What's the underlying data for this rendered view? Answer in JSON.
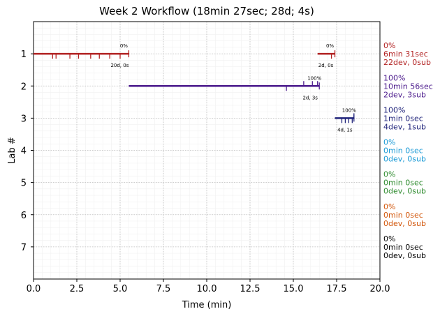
{
  "chart_data": {
    "type": "timeline",
    "title": "Week 2 Workflow (18min 27sec; 28d; 4s)",
    "xlabel": "Time (min)",
    "ylabel": "Lab #",
    "xlim": [
      0,
      20
    ],
    "ylim": [
      0,
      8
    ],
    "x_ticks": [
      "0.0",
      "2.5",
      "5.0",
      "7.5",
      "10.0",
      "12.5",
      "15.0",
      "17.5",
      "20.0"
    ],
    "x_tick_values": [
      0,
      2.5,
      5,
      7.5,
      10,
      12.5,
      15,
      17.5,
      20
    ],
    "y_ticks": [
      "1",
      "2",
      "3",
      "4",
      "5",
      "6",
      "7"
    ],
    "y_tick_values": [
      1,
      2,
      3,
      4,
      5,
      6,
      7
    ],
    "grid": true,
    "labs": [
      {
        "lab": 1,
        "color": "#b22222",
        "segments": [
          {
            "start": 0.0,
            "end": 5.5,
            "percent": "0%",
            "counts": "20d, 0s",
            "dev_ticks": [
              1.1,
              1.3,
              2.1,
              2.6,
              3.3,
              3.8,
              4.4,
              5.0
            ],
            "sub_ticks": []
          },
          {
            "start": 16.4,
            "end": 17.4,
            "percent": "0%",
            "counts": "2d, 0s",
            "dev_ticks": [
              17.2
            ],
            "sub_ticks": []
          }
        ],
        "side_lines": [
          "0%",
          "6min 31sec",
          "22dev, 0sub"
        ]
      },
      {
        "lab": 2,
        "color": "#4b1a8c",
        "segments": [
          {
            "start": 5.5,
            "end": 16.5,
            "percent": "100%",
            "counts": "2d, 3s",
            "dev_ticks": [
              14.6
            ],
            "sub_ticks": [
              15.6,
              16.1,
              16.4
            ]
          }
        ],
        "side_lines": [
          "100%",
          "10min 56sec",
          "2dev, 3sub"
        ]
      },
      {
        "lab": 3,
        "color": "#1f237a",
        "segments": [
          {
            "start": 17.4,
            "end": 18.5,
            "percent": "100%",
            "counts": "4d, 1s",
            "dev_ticks": [
              17.8,
              18.0,
              18.2,
              18.4
            ],
            "sub_ticks": [
              18.5
            ]
          }
        ],
        "side_lines": [
          "100%",
          "1min 0sec",
          "4dev, 1sub"
        ]
      },
      {
        "lab": 4,
        "color": "#1a9ad6",
        "segments": [],
        "side_lines": [
          "0%",
          "0min 0sec",
          "0dev, 0sub"
        ]
      },
      {
        "lab": 5,
        "color": "#2e8b2e",
        "segments": [],
        "side_lines": [
          "0%",
          "0min 0sec",
          "0dev, 0sub"
        ]
      },
      {
        "lab": 6,
        "color": "#d2560a",
        "segments": [],
        "side_lines": [
          "0%",
          "0min 0sec",
          "0dev, 0sub"
        ]
      },
      {
        "lab": 7,
        "color": "#000000",
        "segments": [],
        "side_lines": [
          "0%",
          "0min 0sec",
          "0dev, 0sub"
        ]
      }
    ]
  }
}
